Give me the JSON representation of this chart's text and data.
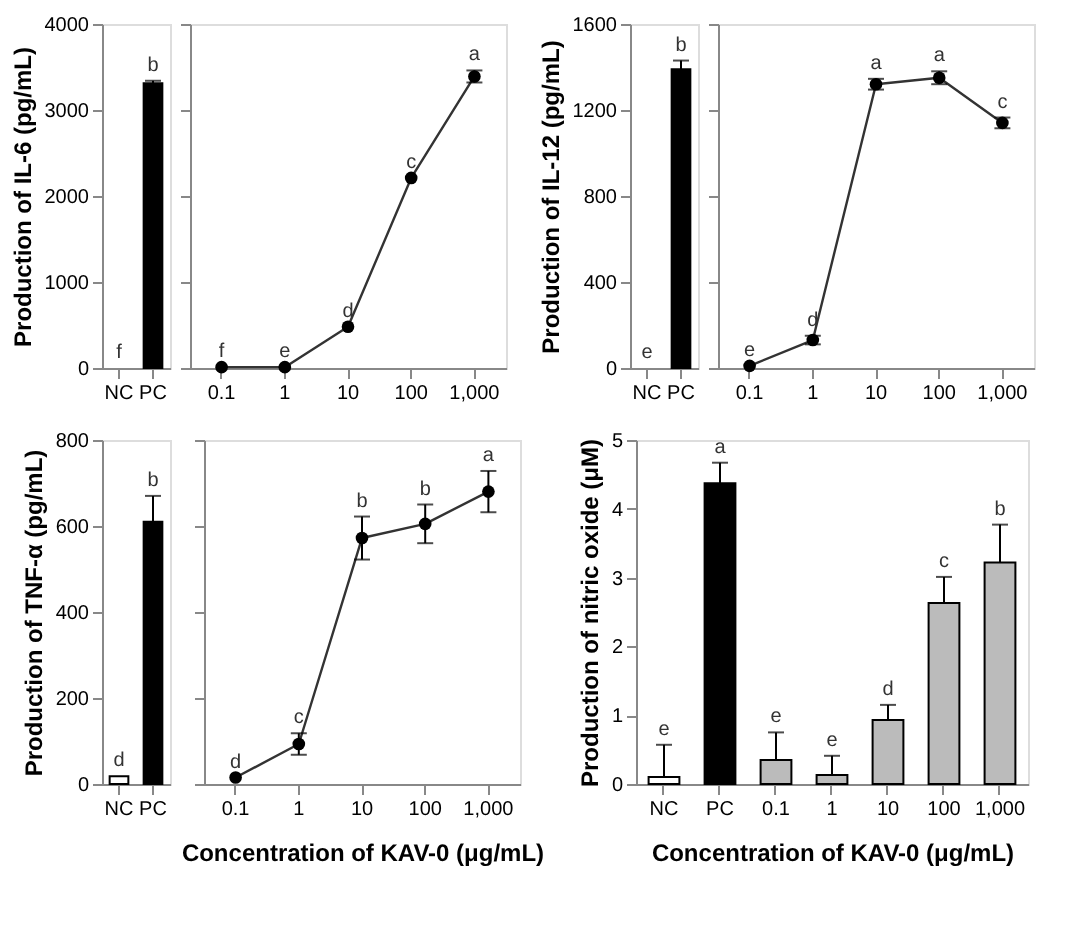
{
  "chart_data": [
    {
      "type": "bar",
      "ylabel": "Production of IL-6 (pg/mL)",
      "categories": [
        "NC",
        "PC"
      ],
      "values": [
        0,
        3310
      ],
      "colors": [
        "#ffffff",
        "#000000"
      ],
      "errors": [
        null,
        [
          3310,
          3340
        ]
      ],
      "ylim": [
        0,
        4000
      ],
      "yticks": [
        0,
        1000,
        2000,
        3000,
        4000
      ],
      "grid": false,
      "annotations": [
        {
          "text": "f",
          "x": "NC",
          "y": 0
        },
        {
          "text": "b",
          "x": "PC",
          "y": 3310
        }
      ]
    },
    {
      "type": "line",
      "categories": [
        "0.1",
        "1",
        "10",
        "100",
        "1,000"
      ],
      "values": [
        10,
        10,
        480,
        2210,
        3390
      ],
      "color": "#333333",
      "marker": "circle",
      "errors": [
        null,
        null,
        null,
        null,
        70
      ],
      "ylim": [
        0,
        4000
      ],
      "yticks": [
        0,
        1000,
        2000,
        3000,
        4000
      ],
      "tick_labels": "x",
      "grid": false,
      "annotations": [
        {
          "text": "f",
          "x": "0.1",
          "y": 10
        },
        {
          "text": "e",
          "x": "1",
          "y": 10
        },
        {
          "text": "d",
          "x": "10",
          "y": 480
        },
        {
          "text": "c",
          "x": "100",
          "y": 2210
        },
        {
          "text": "a",
          "x": "1,000",
          "y": 3390
        }
      ]
    },
    {
      "type": "bar",
      "ylabel": "Production of IL-12 (pg/mL)",
      "categories": [
        "NC",
        "PC"
      ],
      "values": [
        0,
        1390
      ],
      "colors": [
        "#ffffff",
        "#000000"
      ],
      "errors": [
        null,
        [
          1390,
          1430
        ]
      ],
      "ylim": [
        0,
        1600
      ],
      "yticks": [
        0,
        400,
        800,
        1200,
        1600
      ],
      "grid": false,
      "annotations": [
        {
          "text": "e",
          "x": "NC",
          "y": 0
        },
        {
          "text": "b",
          "x": "PC",
          "y": 1390
        }
      ]
    },
    {
      "type": "line",
      "categories": [
        "0.1",
        "1",
        "10",
        "100",
        "1,000"
      ],
      "values": [
        10,
        130,
        1320,
        1350,
        1140
      ],
      "color": "#333333",
      "marker": "circle",
      "errors": [
        null,
        20,
        25,
        30,
        25
      ],
      "ylim": [
        0,
        1600
      ],
      "yticks": [
        0,
        400,
        800,
        1200,
        1600
      ],
      "tick_labels": "x",
      "grid": false,
      "annotations": [
        {
          "text": "e",
          "x": "0.1",
          "y": 10
        },
        {
          "text": "d",
          "x": "1",
          "y": 130
        },
        {
          "text": "a",
          "x": "10",
          "y": 1320
        },
        {
          "text": "a",
          "x": "100",
          "y": 1350
        },
        {
          "text": "c",
          "x": "1,000",
          "y": 1140
        }
      ]
    },
    {
      "type": "bar",
      "ylabel": "Production of TNF-α (pg/mL)",
      "categories": [
        "NC",
        "PC"
      ],
      "values": [
        18,
        610
      ],
      "colors": [
        "#ffffff",
        "#000000"
      ],
      "errors": [
        null,
        [
          610,
          670
        ]
      ],
      "ylim": [
        0,
        800
      ],
      "yticks": [
        0,
        200,
        400,
        600,
        800
      ],
      "grid": false,
      "annotations": [
        {
          "text": "d",
          "x": "NC",
          "y": 18
        },
        {
          "text": "b",
          "x": "PC",
          "y": 610
        }
      ]
    },
    {
      "type": "line",
      "xlabel": "Concentration of KAV-0 (μg/mL)",
      "categories": [
        "0.1",
        "1",
        "10",
        "100",
        "1,000"
      ],
      "values": [
        15,
        93,
        572,
        605,
        680
      ],
      "color": "#333333",
      "marker": "circle",
      "errors": [
        null,
        25,
        50,
        45,
        48
      ],
      "ylim": [
        0,
        800
      ],
      "yticks": [
        0,
        200,
        400,
        600,
        800
      ],
      "tick_labels": "x",
      "grid": false,
      "annotations": [
        {
          "text": "d",
          "x": "0.1",
          "y": 15
        },
        {
          "text": "c",
          "x": "1",
          "y": 93
        },
        {
          "text": "b",
          "x": "10",
          "y": 572
        },
        {
          "text": "b",
          "x": "100",
          "y": 605
        },
        {
          "text": "a",
          "x": "1,000",
          "y": 680
        }
      ]
    },
    {
      "type": "bar",
      "xlabel": "Concentration of KAV-0 (μg/mL)",
      "ylabel": "Production of nitric oxide (μM)",
      "categories": [
        "NC",
        "PC",
        "0.1",
        "1",
        "10",
        "100",
        "1,000"
      ],
      "values": [
        0.1,
        4.37,
        0.35,
        0.13,
        0.93,
        2.63,
        3.22
      ],
      "colors": [
        "#ffffff",
        "#000000",
        "#bbbbbb",
        "#bbbbbb",
        "#bbbbbb",
        "#bbbbbb",
        "#bbbbbb"
      ],
      "errors": [
        [
          0.1,
          0.57
        ],
        [
          4.37,
          4.67
        ],
        [
          0.35,
          0.75
        ],
        [
          0.13,
          0.41
        ],
        [
          0.93,
          1.15
        ],
        [
          2.63,
          3.01
        ],
        [
          3.22,
          3.77
        ]
      ],
      "ylim": [
        0,
        5
      ],
      "yticks": [
        0,
        1,
        2,
        3,
        4,
        5
      ],
      "grid": false,
      "annotations": [
        {
          "text": "e",
          "x": "NC",
          "y": 0.1
        },
        {
          "text": "a",
          "x": "PC",
          "y": 4.37
        },
        {
          "text": "e",
          "x": "0.1",
          "y": 0.35
        },
        {
          "text": "e",
          "x": "1",
          "y": 0.13
        },
        {
          "text": "d",
          "x": "10",
          "y": 0.93
        },
        {
          "text": "c",
          "x": "100",
          "y": 2.63
        },
        {
          "text": "b",
          "x": "1,000",
          "y": 3.22
        }
      ]
    }
  ]
}
